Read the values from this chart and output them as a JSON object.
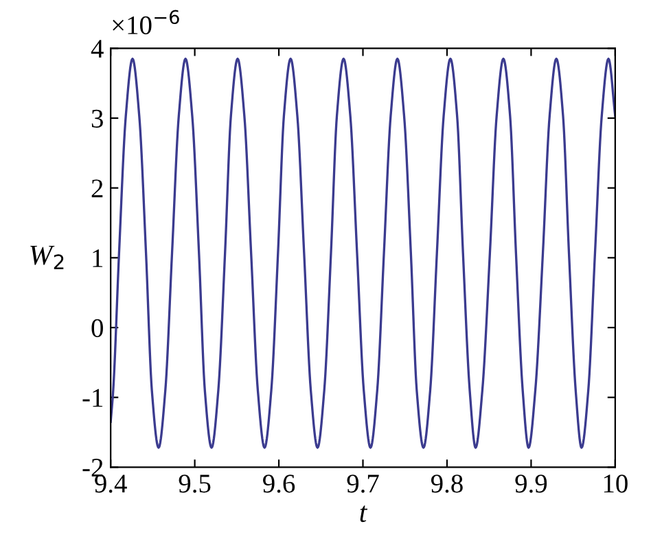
{
  "chart_data": {
    "type": "line",
    "xlabel": "t",
    "ylabel": "W$_{2}$",
    "annotations": [
      "×10$^{−6}$"
    ],
    "grid": false,
    "legend": false,
    "marker": "none",
    "line_style": "solid",
    "xlim": [
      9.4,
      10
    ],
    "xticks": [
      9.4,
      9.5,
      9.6,
      9.7,
      9.8,
      9.9,
      10
    ],
    "ylim": [
      -2,
      4
    ],
    "yticks": [
      -2,
      -1,
      0,
      1,
      2,
      3,
      4
    ],
    "series": [
      {
        "color": "#3b3b8f",
        "x": [
          9.4,
          9.403,
          9.41,
          9.418,
          9.426,
          9.434,
          9.442,
          9.449,
          9.457,
          9.465,
          9.473,
          9.481,
          9.489,
          9.497,
          9.505,
          9.512,
          9.52,
          9.528,
          9.536,
          9.543,
          9.551,
          9.559,
          9.567,
          9.575,
          9.583,
          9.591,
          9.599,
          9.606,
          9.614,
          9.622,
          9.63,
          9.638,
          9.646,
          9.654,
          9.662,
          9.669,
          9.677,
          9.685,
          9.693,
          9.701,
          9.709,
          9.717,
          9.725,
          9.733,
          9.741,
          9.749,
          9.757,
          9.764,
          9.772,
          9.78,
          9.788,
          9.796,
          9.804,
          9.812,
          9.819,
          9.827,
          9.834,
          9.842,
          9.851,
          9.859,
          9.867,
          9.875,
          9.882,
          9.89,
          9.897,
          9.905,
          9.914,
          9.922,
          9.93,
          9.938,
          9.945,
          9.953,
          9.96,
          9.968,
          9.976,
          9.984,
          9.992,
          10.0
        ],
        "values": [
          -1.35,
          -0.9,
          1.07,
          3.03,
          3.85,
          3.03,
          1.07,
          -0.9,
          -1.72,
          -0.9,
          1.07,
          3.03,
          3.85,
          3.03,
          1.07,
          -0.9,
          -1.72,
          -0.9,
          1.07,
          3.03,
          3.85,
          3.03,
          1.07,
          -0.9,
          -1.72,
          -0.9,
          1.07,
          3.03,
          3.85,
          3.03,
          1.07,
          -0.9,
          -1.72,
          -0.9,
          1.07,
          3.03,
          3.85,
          3.03,
          1.07,
          -0.9,
          -1.72,
          -0.9,
          1.07,
          3.03,
          3.85,
          3.03,
          1.07,
          -0.9,
          -1.72,
          -0.9,
          1.07,
          3.03,
          3.85,
          3.03,
          1.07,
          -0.9,
          -1.72,
          -0.9,
          1.07,
          3.03,
          3.85,
          3.03,
          1.07,
          -0.9,
          -1.72,
          -0.9,
          1.07,
          3.03,
          3.85,
          3.03,
          1.07,
          -0.9,
          -1.72,
          -0.9,
          1.07,
          3.03,
          3.85,
          3.03
        ]
      }
    ]
  }
}
